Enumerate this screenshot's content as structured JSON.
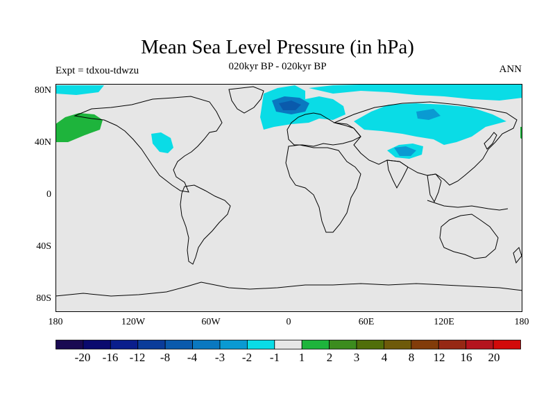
{
  "header": {
    "title": "Mean Sea Level Pressure (in hPa)",
    "subtitle": "020kyr BP - 020kyr BP",
    "left_label": "Expt = tdxou-tdwzu",
    "right_label": "ANN"
  },
  "axes": {
    "lat_ticks": [
      "80N",
      "40N",
      "0",
      "40S",
      "80S"
    ],
    "lon_ticks": [
      "180",
      "120W",
      "60W",
      "0",
      "60E",
      "120E",
      "180"
    ]
  },
  "colorbar": {
    "labels": [
      "-20",
      "-16",
      "-12",
      "-8",
      "-4",
      "-3",
      "-2",
      "-1",
      "1",
      "2",
      "3",
      "4",
      "8",
      "12",
      "16",
      "20"
    ],
    "colors": [
      "#1a0a52",
      "#0a0a6e",
      "#0a1e8c",
      "#0a3c9a",
      "#0a5aac",
      "#0a78c0",
      "#0a9ad2",
      "#0adce6",
      "#e6e6e6",
      "#1eb43c",
      "#3c8c1e",
      "#506e0a",
      "#6e5a0a",
      "#823c0a",
      "#962814",
      "#b4141e",
      "#d20a0a"
    ]
  },
  "colors": {
    "background_field": "#e6e6e6",
    "coast": "#000000"
  }
}
